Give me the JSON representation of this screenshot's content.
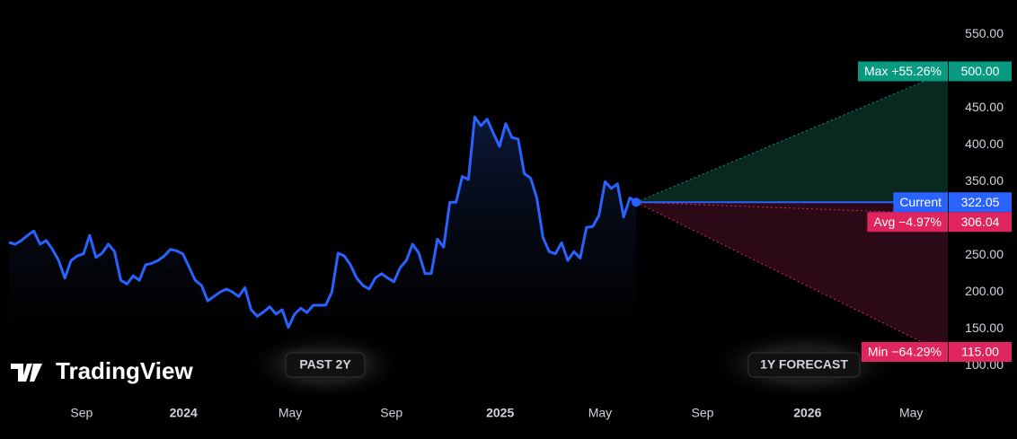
{
  "chart_data": {
    "type": "line",
    "brand": "TradingView",
    "buttons": [
      "PAST 2Y",
      "1Y FORECAST"
    ],
    "series": [
      {
        "name": "Price",
        "color": "#2962ff",
        "values": [
          267.5,
          265,
          270,
          277,
          283,
          265,
          270,
          258,
          243,
          219,
          243,
          249,
          252,
          277,
          247,
          253,
          265,
          255,
          216,
          211,
          222,
          216,
          237,
          239,
          243,
          249,
          258,
          256,
          252,
          234,
          216,
          209,
          188,
          194,
          200,
          204,
          200,
          194,
          206,
          176,
          167,
          173,
          180,
          170,
          176,
          152,
          170,
          178,
          172,
          182,
          182,
          182,
          200,
          253,
          249,
          237,
          219,
          209,
          204,
          219,
          225,
          219,
          214,
          233,
          243,
          265,
          253,
          225,
          225,
          272,
          261,
          322,
          322,
          357,
          353,
          438,
          426,
          435,
          416,
          398,
          429,
          410,
          408,
          361,
          355,
          328,
          274,
          255,
          252,
          267,
          243,
          255,
          246,
          288,
          289,
          304,
          350,
          341,
          347,
          302,
          328,
          322.05
        ]
      }
    ],
    "current_label": "Current",
    "forecast": {
      "names": [
        "Max +55.26%",
        "Avg −4.97%",
        "Min −64.29%"
      ],
      "values": [
        500,
        306.04,
        115
      ],
      "value_labels": [
        "500.00",
        "306.04",
        "115.00"
      ],
      "colors": [
        "#089981",
        "#e0245e",
        "#e0245e"
      ]
    },
    "xlim": [
      -1.447,
      151.2
    ],
    "xticks": [
      {
        "value": 11.7,
        "label": "Sep"
      },
      {
        "value": 28.1,
        "label": "2024"
      },
      {
        "value": 45.3,
        "label": "May"
      },
      {
        "value": 61.6,
        "label": "Sep"
      },
      {
        "value": 79.1,
        "label": "2025"
      },
      {
        "value": 95.2,
        "label": "May"
      },
      {
        "value": 111.7,
        "label": "Sep"
      },
      {
        "value": 128.6,
        "label": "2026"
      },
      {
        "value": 145.3,
        "label": "May"
      }
    ],
    "ylim": [
      60,
      597
    ],
    "yticks": [
      {
        "value": 100,
        "label": "100.00"
      },
      {
        "value": 150,
        "label": "150.00"
      },
      {
        "value": 200,
        "label": "200.00"
      },
      {
        "value": 250,
        "label": "250.00"
      },
      {
        "value": 300,
        "label": "300.00"
      },
      {
        "value": 350,
        "label": "350.00"
      },
      {
        "value": 400,
        "label": "400.00"
      },
      {
        "value": 450,
        "label": "450.00"
      },
      {
        "value": 500,
        "label": "500.00"
      },
      {
        "value": 550,
        "label": "550.00"
      }
    ],
    "grid": false
  }
}
